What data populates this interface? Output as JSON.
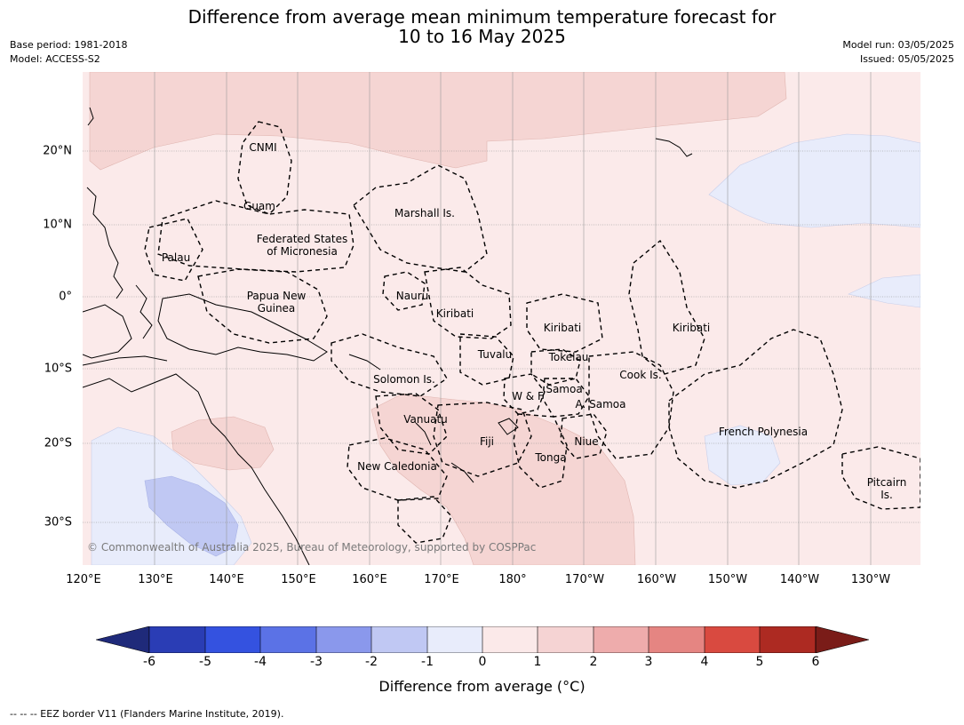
{
  "title_line1": "Difference from average mean minimum temperature forecast for",
  "title_line2": "10 to 16 May 2025",
  "base_period": "Base period: 1981-2018",
  "model": "Model: ACCESS-S2",
  "model_run": "Model run: 03/05/2025",
  "issued": "Issued: 05/05/2025",
  "longitude_ticks": [
    "120°E",
    "130°E",
    "140°E",
    "150°E",
    "160°E",
    "170°E",
    "180°",
    "170°W",
    "160°W",
    "150°W",
    "140°W",
    "130°W"
  ],
  "latitude_ticks": [
    "20°N",
    "10°N",
    "0°",
    "10°S",
    "20°S",
    "30°S"
  ],
  "places": {
    "cnmi": "CNMI",
    "guam": "Guam",
    "marshall": "Marshall Is.",
    "fsm_1": "Federated States",
    "fsm_2": "of Micronesia",
    "palau": "Palau",
    "png_1": "Papua New",
    "png_2": "Guinea",
    "nauru": "Nauru",
    "kiribati_w": "Kiribati",
    "kiribati_c": "Kiribati",
    "kiribati_e": "Kiribati",
    "tuvalu": "Tuvalu",
    "tokelau": "Tokelau",
    "cook": "Cook Is.",
    "solomon": "Solomon Is.",
    "wf": "W & F",
    "samoa": "Samoa",
    "asamoa": "A. Samoa",
    "vanuatu": "Vanuatu",
    "fiji": "Fiji",
    "niue": "Niue",
    "tonga": "Tonga",
    "new_caledonia": "New Caledonia",
    "french_polynesia": "French Polynesia",
    "pitcairn_1": "Pitcairn",
    "pitcairn_2": "Is."
  },
  "copyright": "© Commonwealth of Australia 2025, Bureau of Meteorology, supported by COSPPac",
  "colorbar": {
    "title": "Difference from average (°C)",
    "labels": [
      "-6",
      "-5",
      "-4",
      "-3",
      "-2",
      "-1",
      "0",
      "1",
      "2",
      "3",
      "4",
      "5",
      "6"
    ],
    "colors": [
      "#1f2a7a",
      "#2a3db5",
      "#3452e0",
      "#5b72e6",
      "#8a98ec",
      "#c0c8f3",
      "#e8ecfb",
      "#fbe9e9",
      "#f5d3d3",
      "#eeacac",
      "#e58582",
      "#d94a40",
      "#ad2a22",
      "#7a1c18"
    ]
  },
  "map_colors": {
    "band_0_1": "#fbeaea",
    "band_1_2": "#f5d5d3",
    "band_neg1_0": "#e8ecfb",
    "band_neg2_neg1": "#c0c8f3"
  },
  "footnote": "--  --  -- EEZ border V11 (Flanders Marine Institute, 2019)."
}
